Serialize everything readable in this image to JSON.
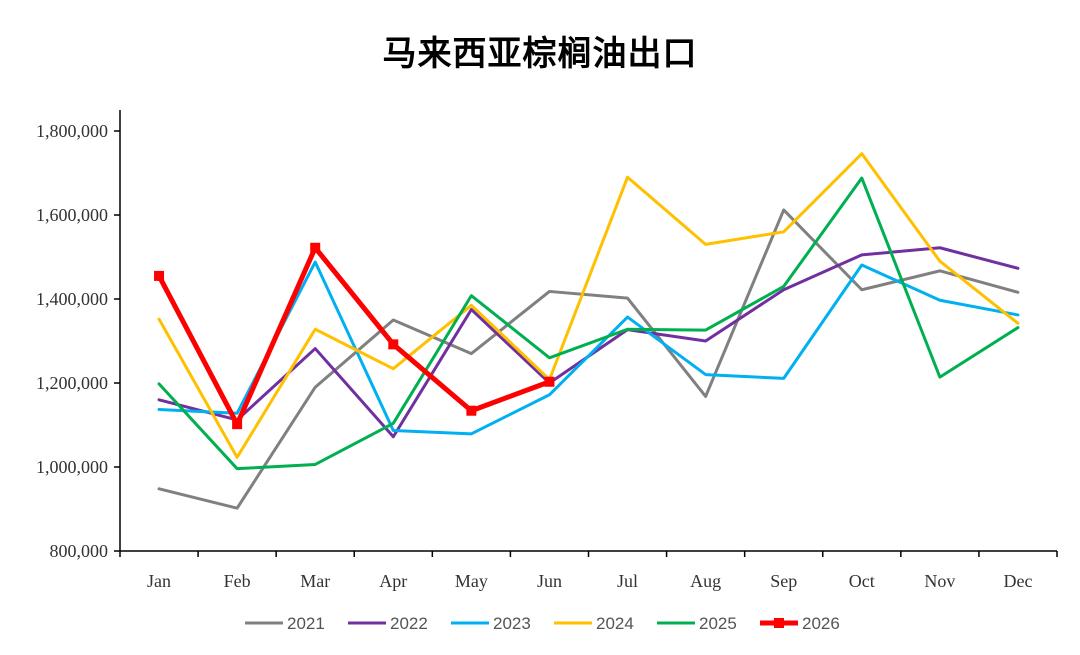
{
  "chart_data": {
    "type": "line",
    "title": "马来西亚棕榈油出口",
    "categories": [
      "Jan",
      "Feb",
      "Mar",
      "Apr",
      "May",
      "Jun",
      "Jul",
      "Aug",
      "Sep",
      "Oct",
      "Nov",
      "Dec"
    ],
    "ylim": [
      800000,
      1850000
    ],
    "yticks": [
      800000,
      1000000,
      1200000,
      1400000,
      1600000,
      1800000
    ],
    "ytick_labels": [
      "800,000",
      "1,000,000",
      "1,200,000",
      "1,400,000",
      "1,600,000",
      "1,800,000"
    ],
    "grid": false,
    "legend_position": "bottom",
    "series": [
      {
        "name": "2021",
        "color": "#808080",
        "width": 3,
        "marker": false,
        "values": [
          948000,
          902000,
          1190000,
          1350000,
          1270000,
          1418000,
          1402000,
          1168000,
          1612000,
          1422000,
          1467000,
          1416000
        ]
      },
      {
        "name": "2022",
        "color": "#7030A0",
        "width": 3,
        "marker": false,
        "values": [
          1160000,
          1112000,
          1282000,
          1072000,
          1375000,
          1200000,
          1327000,
          1300000,
          1422000,
          1505000,
          1522000,
          1473000
        ]
      },
      {
        "name": "2023",
        "color": "#00B0F0",
        "width": 3,
        "marker": false,
        "values": [
          1137000,
          1128000,
          1488000,
          1087000,
          1079000,
          1172000,
          1357000,
          1220000,
          1211000,
          1481000,
          1397000,
          1362000
        ]
      },
      {
        "name": "2024",
        "color": "#FFC000",
        "width": 3,
        "marker": false,
        "values": [
          1352000,
          1023000,
          1328000,
          1234000,
          1385000,
          1208000,
          1690000,
          1530000,
          1560000,
          1746000,
          1490000,
          1342000
        ]
      },
      {
        "name": "2025",
        "color": "#00B050",
        "width": 3,
        "marker": false,
        "values": [
          1198000,
          996000,
          1006000,
          1104000,
          1408000,
          1260000,
          1328000,
          1326000,
          1430000,
          1688000,
          1214000,
          1332000
        ]
      },
      {
        "name": "2026",
        "color": "#FF0000",
        "width": 5,
        "marker": true,
        "values": [
          1455000,
          1102000,
          1522000,
          1292000,
          1134000,
          1203000,
          null,
          null,
          null,
          null,
          null,
          null
        ]
      }
    ]
  }
}
